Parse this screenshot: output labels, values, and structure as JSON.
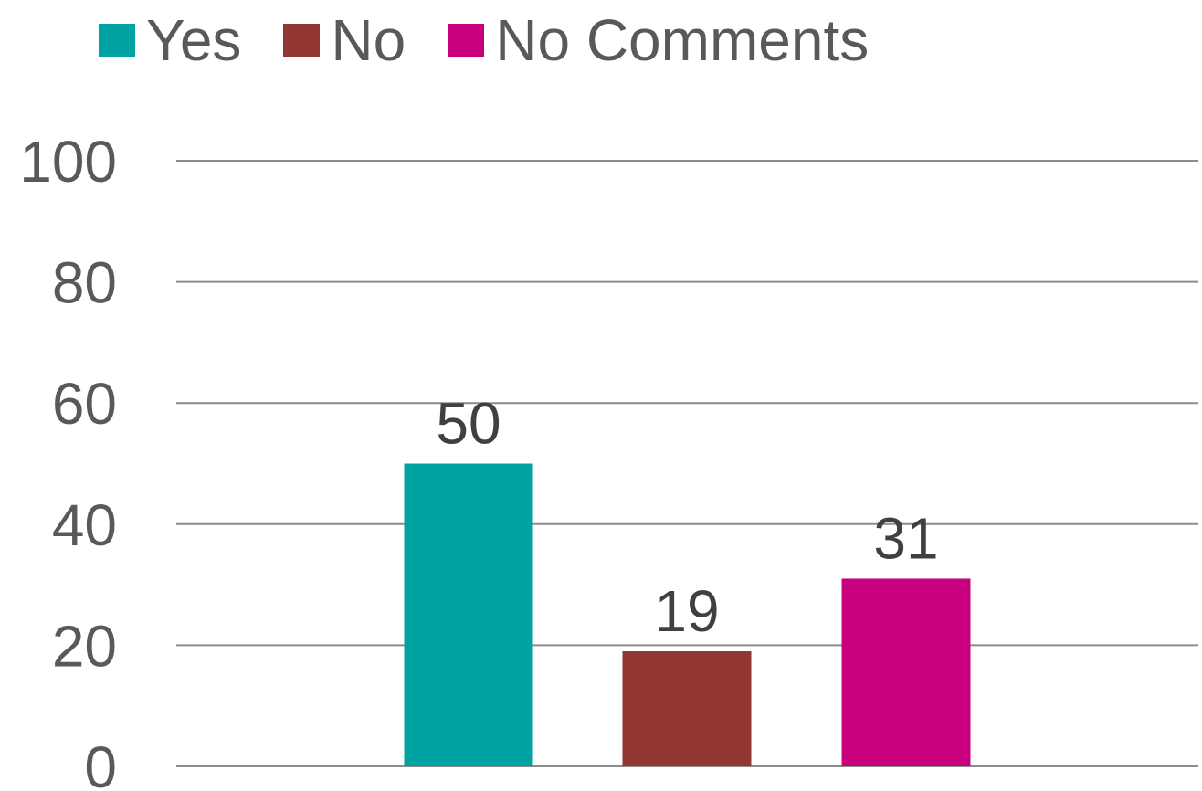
{
  "chart_data": {
    "type": "bar",
    "title": "",
    "xlabel": "",
    "ylabel": "",
    "categories": [
      "Yes",
      "No",
      "No Comments"
    ],
    "values": [
      50,
      19,
      31
    ],
    "colors": [
      "#00A3A1",
      "#943634",
      "#C8007D"
    ],
    "ylim": [
      0,
      100
    ],
    "yticks": [
      0,
      20,
      40,
      60,
      80,
      100
    ],
    "yticks_labels": [
      "0",
      "20",
      "40",
      "60",
      "80",
      "100"
    ],
    "data_labels": [
      "50",
      "19",
      "31"
    ],
    "grid": true,
    "gridline_color": "#8C8C8C",
    "legend_position": "top",
    "legend": [
      {
        "label": "Yes",
        "color": "#00A3A1"
      },
      {
        "label": "No",
        "color": "#943634"
      },
      {
        "label": "No Comments",
        "color": "#C8007D"
      }
    ]
  }
}
